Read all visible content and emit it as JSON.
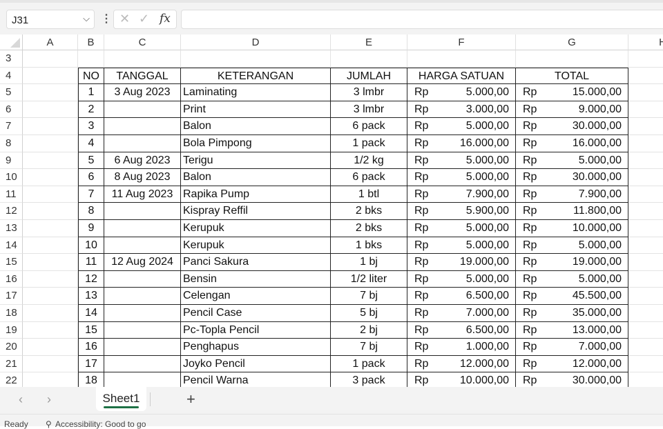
{
  "name_box": "J31",
  "formula_icons": [
    "cancel-icon",
    "enter-icon",
    "fx-icon"
  ],
  "fx_label": "fx",
  "columns": [
    "A",
    "B",
    "C",
    "D",
    "E",
    "F",
    "G",
    "H"
  ],
  "row_numbers": [
    "3",
    "4",
    "5",
    "6",
    "7",
    "8",
    "9",
    "10",
    "11",
    "12",
    "13",
    "14",
    "15",
    "16",
    "17",
    "18",
    "19",
    "20",
    "21",
    "22"
  ],
  "table": {
    "headers": [
      "NO",
      "TANGGAL",
      "KETERANGAN",
      "JUMLAH",
      "HARGA SATUAN",
      "TOTAL"
    ],
    "currency": "Rp",
    "rows": [
      [
        "1",
        "3 Aug 2023",
        "Laminating",
        "3 lmbr",
        "5.000,00",
        "15.000,00"
      ],
      [
        "2",
        "",
        "Print",
        "3 lmbr",
        "3.000,00",
        "9.000,00"
      ],
      [
        "3",
        "",
        "Balon",
        "6 pack",
        "5.000,00",
        "30.000,00"
      ],
      [
        "4",
        "",
        "Bola Pimpong",
        "1 pack",
        "16.000,00",
        "16.000,00"
      ],
      [
        "5",
        "6 Aug 2023",
        "Terigu",
        "1/2 kg",
        "5.000,00",
        "5.000,00"
      ],
      [
        "6",
        "8 Aug 2023",
        "Balon",
        "6 pack",
        "5.000,00",
        "30.000,00"
      ],
      [
        "7",
        "11 Aug 2023",
        "Rapika Pump",
        "1 btl",
        "7.900,00",
        "7.900,00"
      ],
      [
        "8",
        "",
        "Kispray Reffil",
        "2 bks",
        "5.900,00",
        "11.800,00"
      ],
      [
        "9",
        "",
        "Kerupuk",
        "2 bks",
        "5.000,00",
        "10.000,00"
      ],
      [
        "10",
        "",
        "Kerupuk",
        "1 bks",
        "5.000,00",
        "5.000,00"
      ],
      [
        "11",
        "12 Aug 2024",
        "Panci Sakura",
        "1 bj",
        "19.000,00",
        "19.000,00"
      ],
      [
        "12",
        "",
        "Bensin",
        "1/2 liter",
        "5.000,00",
        "5.000,00"
      ],
      [
        "13",
        "",
        "Celengan",
        "7 bj",
        "6.500,00",
        "45.500,00"
      ],
      [
        "14",
        "",
        "Pencil Case",
        "5 bj",
        "7.000,00",
        "35.000,00"
      ],
      [
        "15",
        "",
        "Pc-Topla Pencil",
        "2 bj",
        "6.500,00",
        "13.000,00"
      ],
      [
        "16",
        "",
        "Penghapus",
        "7 bj",
        "1.000,00",
        "7.000,00"
      ],
      [
        "17",
        "",
        "Joyko Pencil",
        "1 pack",
        "12.000,00",
        "12.000,00"
      ],
      [
        "18",
        "",
        "Pencil Warna",
        "3 pack",
        "10.000,00",
        "30.000,00"
      ]
    ]
  },
  "sheet_tabs": {
    "active": "Sheet1",
    "prev": "‹",
    "next": "›",
    "add": "+"
  },
  "status": {
    "mode": "Ready",
    "accessibility": "Accessibility: Good to go"
  },
  "accent_color": "#1e7145"
}
